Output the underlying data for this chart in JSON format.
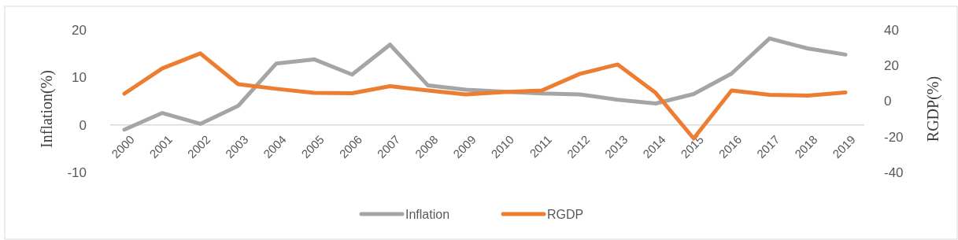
{
  "chart_data": {
    "type": "line",
    "categories": [
      "2000",
      "2001",
      "2002",
      "2003",
      "2004",
      "2005",
      "2006",
      "2007",
      "2008",
      "2009",
      "2010",
      "2011",
      "2012",
      "2013",
      "2014",
      "2015",
      "2016",
      "2017",
      "2018",
      "2019"
    ],
    "series": [
      {
        "name": "Inflation",
        "color": "#a5a5a5",
        "values": [
          -1,
          2.5,
          0.2,
          4,
          12.9,
          13.8,
          10.6,
          16.9,
          8.3,
          7.4,
          7,
          6.6,
          6.4,
          5.3,
          4.5,
          6.5,
          10.8,
          18.2,
          16.1,
          14.8
        ]
      },
      {
        "name": "RGDP",
        "color": "#ed7d31",
        "axis": "y2",
        "values": [
          4.2,
          18.4,
          26.8,
          9.5,
          6.9,
          4.6,
          4.4,
          8.4,
          6,
          3.8,
          5.1,
          6,
          15.3,
          20.6,
          4.6,
          -21,
          6,
          3.5,
          3.1,
          4.9
        ]
      }
    ],
    "ylabel": "Inflation(%)",
    "y2label": "RGDP(%)",
    "ylim": [
      -10,
      20
    ],
    "yticks": [
      -10,
      0,
      10,
      20
    ],
    "y2lim": [
      -40,
      40
    ],
    "y2ticks": [
      -40,
      -20,
      0,
      20,
      40
    ],
    "grid": false,
    "legend": "bottom",
    "marker": "none",
    "line_style": "solid"
  }
}
